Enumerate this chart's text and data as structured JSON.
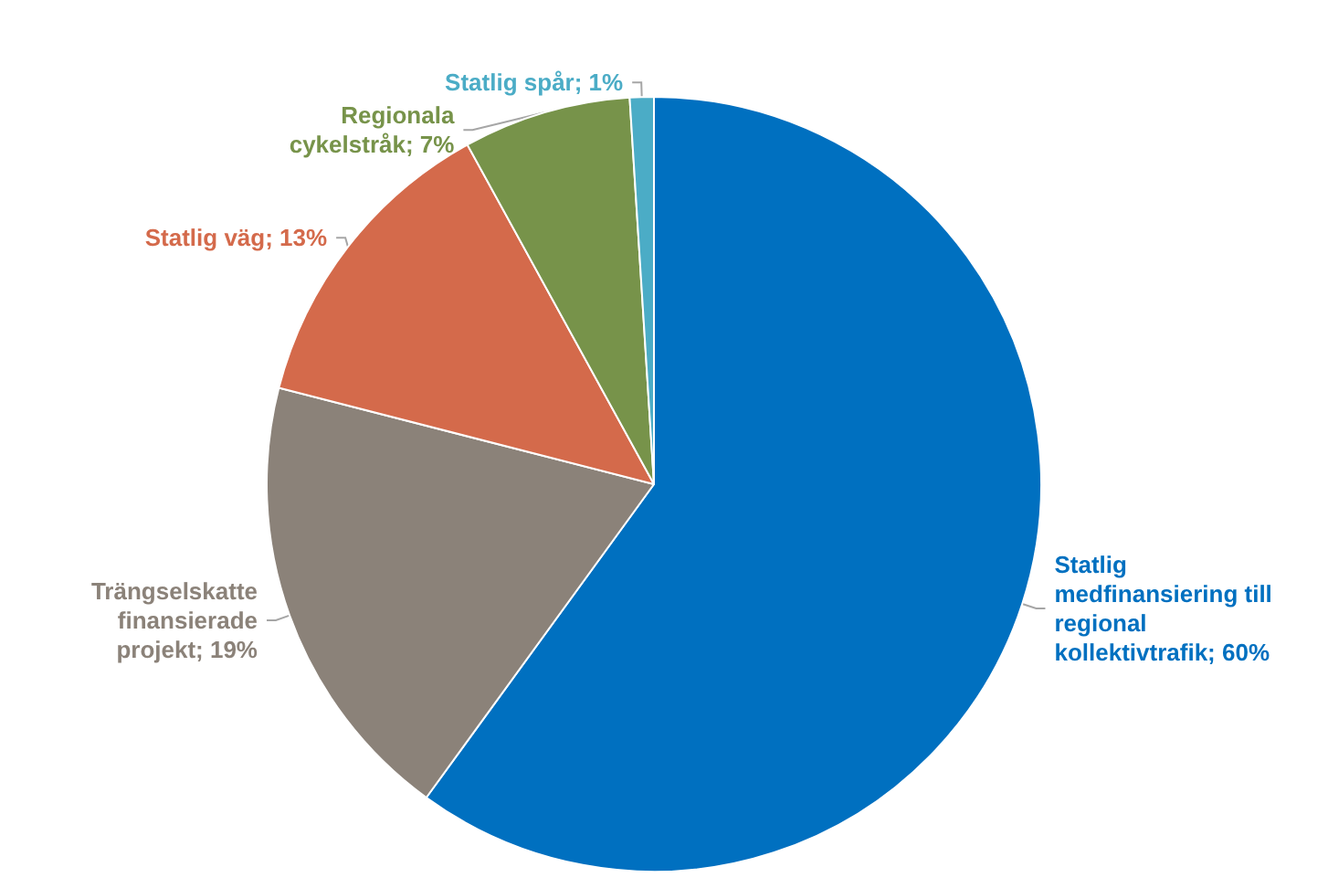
{
  "chart_data": {
    "type": "pie",
    "categories": [
      "Statlig medfinansiering till regional kollektivtrafik",
      "Trängselskatte finansierade projekt",
      "Statlig väg",
      "Regionala cykelstråk",
      "Statlig spår"
    ],
    "values": [
      60,
      19,
      13,
      7,
      1
    ],
    "value_labels": [
      "60%",
      "19%",
      "13%",
      "7%",
      "1%"
    ],
    "colors": [
      "#0070c0",
      "#8b8279",
      "#d46a4b",
      "#77934a",
      "#4bacc6"
    ],
    "legend": false
  }
}
